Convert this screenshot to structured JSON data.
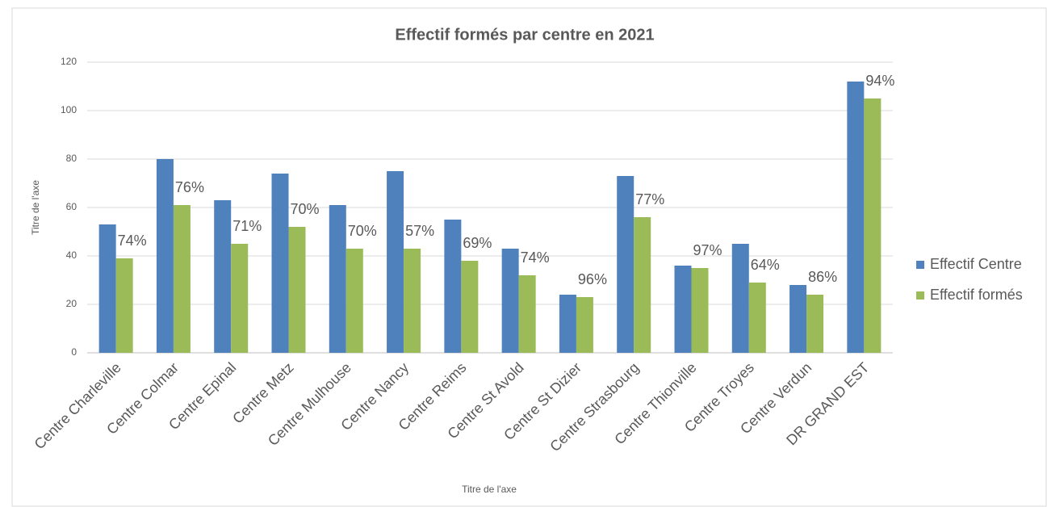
{
  "chart_data": {
    "type": "bar",
    "title": "Effectif formés par centre en 2021",
    "x_label": "Titre de l'axe",
    "y_label": "Titre de l'axe",
    "categories": [
      "Centre Charleville",
      "Centre Colmar",
      "Centre Epinal",
      "Centre Metz",
      "Centre Mulhouse",
      "Centre Nancy",
      "Centre Reims",
      "Centre St Avold",
      "Centre St Dizier",
      "Centre Strasbourg",
      "Centre Thionville",
      "Centre Troyes",
      "Centre Verdun",
      "DR GRAND EST"
    ],
    "series": [
      {
        "name": "Effectif Centre",
        "color": "#4f81bd",
        "values": [
          53,
          80,
          63,
          74,
          61,
          75,
          55,
          43,
          24,
          73,
          36,
          45,
          28,
          112
        ]
      },
      {
        "name": "Effectif formés",
        "color": "#9bbb59",
        "values": [
          39,
          61,
          45,
          52,
          43,
          43,
          38,
          32,
          23,
          56,
          35,
          29,
          24,
          105
        ],
        "annotations": [
          "74%",
          "76%",
          "71%",
          "70%",
          "70%",
          "57%",
          "69%",
          "74%",
          "96%",
          "77%",
          "97%",
          "64%",
          "86%",
          "94%"
        ]
      }
    ],
    "ylim": [
      0,
      120
    ],
    "yticks": [
      0,
      20,
      40,
      60,
      80,
      100,
      120
    ],
    "grid": true,
    "legend": "right"
  }
}
